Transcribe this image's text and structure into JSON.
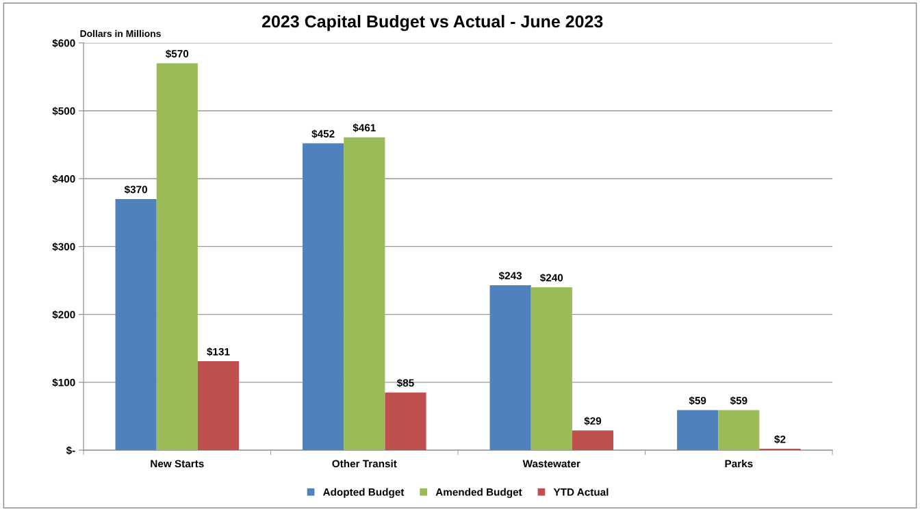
{
  "chart_data": {
    "type": "bar",
    "title": "2023 Capital Budget vs Actual - June 2023",
    "ylabel": "Dollars in Millions",
    "categories": [
      "New Starts",
      "Other Transit",
      "Wastewater",
      "Parks"
    ],
    "series": [
      {
        "name": "Adopted Budget",
        "color": "#4f81bd",
        "values": [
          370,
          452,
          243,
          59
        ],
        "value_labels": [
          "$370",
          "$452",
          "$243",
          "$59"
        ]
      },
      {
        "name": "Amended Budget",
        "color": "#9bbb59",
        "values": [
          570,
          461,
          240,
          59
        ],
        "value_labels": [
          "$570",
          "$461",
          "$240",
          "$59"
        ]
      },
      {
        "name": "YTD Actual",
        "color": "#c0504d",
        "values": [
          131,
          85,
          29,
          2
        ],
        "value_labels": [
          "$131",
          "$85",
          "$29",
          "$2"
        ]
      }
    ],
    "ylim": [
      0,
      600
    ],
    "yticks": [
      {
        "value": 0,
        "label": "$-"
      },
      {
        "value": 100,
        "label": "$100"
      },
      {
        "value": 200,
        "label": "$200"
      },
      {
        "value": 300,
        "label": "$300"
      },
      {
        "value": 400,
        "label": "$400"
      },
      {
        "value": 500,
        "label": "$500"
      },
      {
        "value": 600,
        "label": "$600"
      }
    ],
    "grid": "y",
    "legend": "bottom"
  }
}
